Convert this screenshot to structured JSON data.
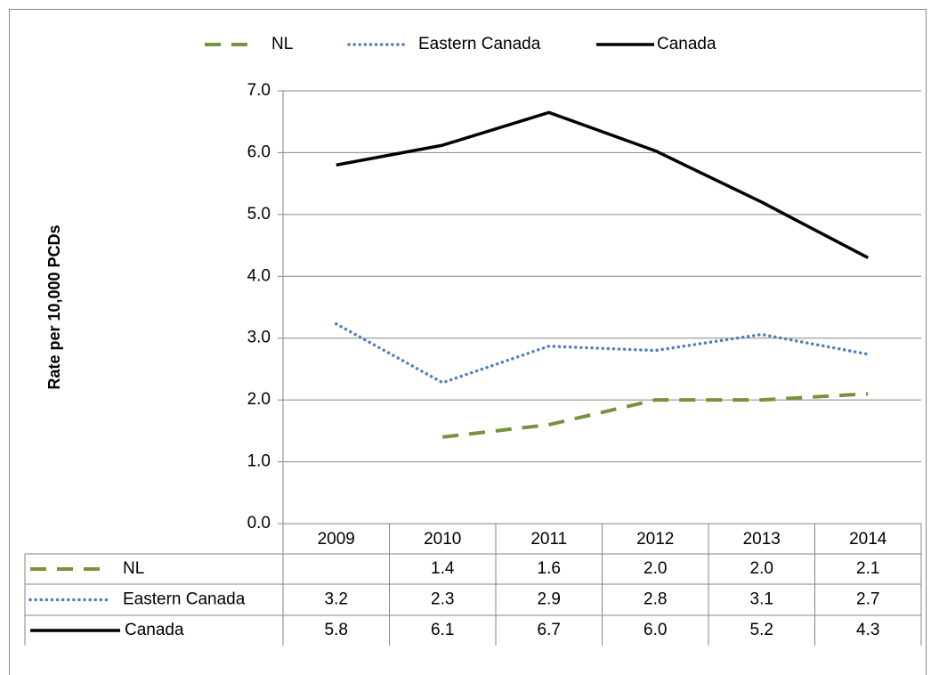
{
  "chart_data": {
    "type": "line",
    "y_label": "Rate per 10,000 PCDs",
    "categories": [
      "2009",
      "2010",
      "2011",
      "2012",
      "2013",
      "2014"
    ],
    "series": [
      {
        "name": "NL",
        "color": "#77933c",
        "style": "dashed",
        "values": [
          null,
          1.4,
          1.6,
          2.0,
          2.0,
          2.1
        ],
        "value_labels": [
          null,
          "1.4",
          "1.6",
          "2.0",
          "2.0",
          "2.1"
        ]
      },
      {
        "name": "Eastern Canada",
        "color": "#4f81bd",
        "style": "dotted",
        "values": [
          3.23,
          2.28,
          2.87,
          2.8,
          3.06,
          2.74
        ],
        "value_labels": [
          "3.2",
          "2.3",
          "2.9",
          "2.8",
          "3.1",
          "2.7"
        ]
      },
      {
        "name": "Canada",
        "color": "#000000",
        "style": "solid",
        "values": [
          5.8,
          6.12,
          6.65,
          6.03,
          5.2,
          4.3
        ],
        "value_labels": [
          "5.8",
          "6.1",
          "6.7",
          "6.0",
          "5.2",
          "4.3"
        ]
      }
    ],
    "ylim": [
      0,
      7
    ],
    "yticks": [
      {
        "value": 0,
        "label": "0.0"
      },
      {
        "value": 1,
        "label": "1.0"
      },
      {
        "value": 2,
        "label": "2.0"
      },
      {
        "value": 3,
        "label": "3.0"
      },
      {
        "value": 4,
        "label": "4.0"
      },
      {
        "value": 5,
        "label": "5.0"
      },
      {
        "value": 6,
        "label": "6.0"
      },
      {
        "value": 7,
        "label": "7.0"
      }
    ],
    "grid": true,
    "legend": "top",
    "data_table": true
  }
}
